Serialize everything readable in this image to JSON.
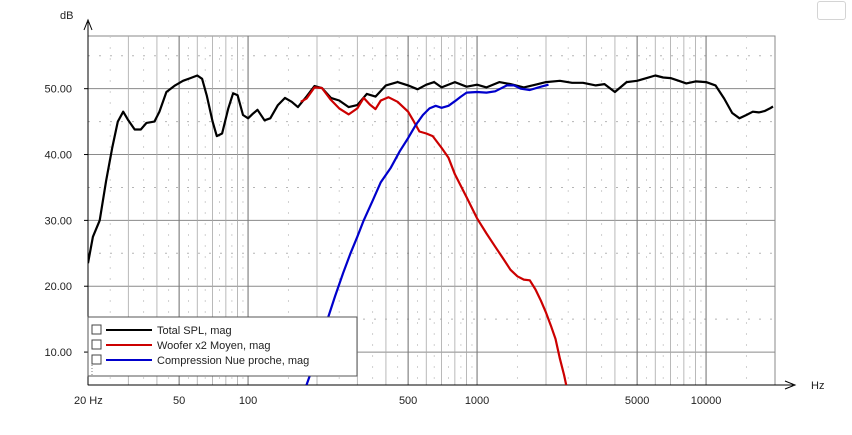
{
  "chart_data": {
    "type": "line",
    "ylabel": "dB",
    "xlabel": "Hz",
    "x_scale": "log",
    "xlim": [
      20,
      20000
    ],
    "ylim": [
      5,
      58
    ],
    "grid": true,
    "legend_position": "bottom-left",
    "y_ticks": [
      "10.00",
      "20.00",
      "30.00",
      "40.00",
      "50.00"
    ],
    "y_tick_values": [
      10,
      20,
      30,
      40,
      50
    ],
    "x_ticks": [
      "20 Hz",
      "50",
      "100",
      "500",
      "1000",
      "5000",
      "10000"
    ],
    "x_tick_values": [
      20,
      50,
      100,
      500,
      1000,
      5000,
      10000
    ],
    "series": [
      {
        "name": "Total SPL, mag",
        "color": "#000000",
        "points": [
          [
            20,
            23.5
          ],
          [
            21,
            27.5
          ],
          [
            22.5,
            30
          ],
          [
            24,
            36
          ],
          [
            25.5,
            41
          ],
          [
            27,
            45
          ],
          [
            28.5,
            46.5
          ],
          [
            30,
            45.2
          ],
          [
            32,
            43.8
          ],
          [
            34,
            43.8
          ],
          [
            36,
            44.8
          ],
          [
            39,
            45
          ],
          [
            41,
            46.5
          ],
          [
            44,
            49.5
          ],
          [
            48,
            50.5
          ],
          [
            52,
            51.2
          ],
          [
            56,
            51.6
          ],
          [
            60,
            52
          ],
          [
            63,
            51.5
          ],
          [
            66,
            49
          ],
          [
            70,
            45
          ],
          [
            73,
            42.8
          ],
          [
            77,
            43.2
          ],
          [
            82,
            47
          ],
          [
            86,
            49.3
          ],
          [
            90,
            49
          ],
          [
            95,
            46
          ],
          [
            100,
            45.5
          ],
          [
            105,
            46.2
          ],
          [
            110,
            46.8
          ],
          [
            118,
            45.2
          ],
          [
            125,
            45.5
          ],
          [
            135,
            47.5
          ],
          [
            145,
            48.6
          ],
          [
            155,
            48
          ],
          [
            165,
            47.2
          ],
          [
            180,
            48.8
          ],
          [
            195,
            50.4
          ],
          [
            210,
            50.1
          ],
          [
            230,
            48.6
          ],
          [
            250,
            48.2
          ],
          [
            275,
            47.2
          ],
          [
            300,
            47.5
          ],
          [
            330,
            49.2
          ],
          [
            360,
            48.8
          ],
          [
            400,
            50.5
          ],
          [
            450,
            51
          ],
          [
            500,
            50.5
          ],
          [
            550,
            49.9
          ],
          [
            600,
            50.6
          ],
          [
            650,
            51
          ],
          [
            700,
            50.2
          ],
          [
            800,
            51
          ],
          [
            900,
            50.3
          ],
          [
            1000,
            50.6
          ],
          [
            1100,
            50.2
          ],
          [
            1250,
            51
          ],
          [
            1400,
            50.7
          ],
          [
            1600,
            50.2
          ],
          [
            1800,
            50.6
          ],
          [
            2000,
            51
          ],
          [
            2300,
            51.2
          ],
          [
            2600,
            50.9
          ],
          [
            2900,
            50.9
          ],
          [
            3300,
            50.5
          ],
          [
            3600,
            50.7
          ],
          [
            4000,
            49.5
          ],
          [
            4500,
            51
          ],
          [
            5000,
            51.2
          ],
          [
            5500,
            51.6
          ],
          [
            6000,
            52
          ],
          [
            6500,
            51.7
          ],
          [
            7000,
            51.6
          ],
          [
            7600,
            51.2
          ],
          [
            8200,
            50.8
          ],
          [
            9000,
            51.1
          ],
          [
            10000,
            51
          ],
          [
            11000,
            50.5
          ],
          [
            12000,
            48.5
          ],
          [
            13000,
            46.3
          ],
          [
            14000,
            45.5
          ],
          [
            15000,
            46
          ],
          [
            16000,
            46.5
          ],
          [
            17000,
            46.4
          ],
          [
            18000,
            46.6
          ],
          [
            19000,
            47
          ],
          [
            19600,
            47.3
          ]
        ]
      },
      {
        "name": "Woofer x2 Moyen, mag",
        "color": "#cc0000",
        "points": [
          [
            170,
            48
          ],
          [
            180,
            48.5
          ],
          [
            195,
            50.2
          ],
          [
            210,
            50.1
          ],
          [
            230,
            48.3
          ],
          [
            250,
            47
          ],
          [
            275,
            46.1
          ],
          [
            300,
            47
          ],
          [
            320,
            48.6
          ],
          [
            340,
            47.6
          ],
          [
            360,
            46.9
          ],
          [
            380,
            48.2
          ],
          [
            410,
            48.7
          ],
          [
            450,
            48
          ],
          [
            500,
            46.5
          ],
          [
            530,
            45
          ],
          [
            560,
            43.5
          ],
          [
            600,
            43.2
          ],
          [
            640,
            42.8
          ],
          [
            700,
            41
          ],
          [
            750,
            39.5
          ],
          [
            800,
            37
          ],
          [
            900,
            33.5
          ],
          [
            1000,
            30.3
          ],
          [
            1100,
            28
          ],
          [
            1200,
            26
          ],
          [
            1300,
            24.2
          ],
          [
            1400,
            22.5
          ],
          [
            1500,
            21.5
          ],
          [
            1600,
            21
          ],
          [
            1700,
            20.9
          ],
          [
            1800,
            19.5
          ],
          [
            1900,
            17.8
          ],
          [
            2000,
            16
          ],
          [
            2100,
            14
          ],
          [
            2200,
            12
          ],
          [
            2300,
            9
          ],
          [
            2400,
            6.5
          ],
          [
            2450,
            5
          ]
        ]
      },
      {
        "name": "Compression Nue proche, mag",
        "color": "#0000cc",
        "points": [
          [
            180,
            5
          ],
          [
            200,
            9.5
          ],
          [
            220,
            14.5
          ],
          [
            240,
            18.5
          ],
          [
            260,
            22
          ],
          [
            280,
            25
          ],
          [
            300,
            27.5
          ],
          [
            320,
            30
          ],
          [
            350,
            33
          ],
          [
            380,
            35.8
          ],
          [
            420,
            38
          ],
          [
            460,
            40.5
          ],
          [
            500,
            42.5
          ],
          [
            540,
            44.5
          ],
          [
            580,
            46
          ],
          [
            620,
            47
          ],
          [
            660,
            47.4
          ],
          [
            700,
            47.1
          ],
          [
            750,
            47.4
          ],
          [
            800,
            48.1
          ],
          [
            850,
            48.8
          ],
          [
            900,
            49.4
          ],
          [
            1000,
            49.5
          ],
          [
            1100,
            49.4
          ],
          [
            1200,
            49.6
          ],
          [
            1350,
            50.5
          ],
          [
            1450,
            50.5
          ],
          [
            1550,
            50
          ],
          [
            1700,
            49.8
          ],
          [
            1900,
            50.3
          ],
          [
            2050,
            50.6
          ]
        ]
      }
    ]
  }
}
